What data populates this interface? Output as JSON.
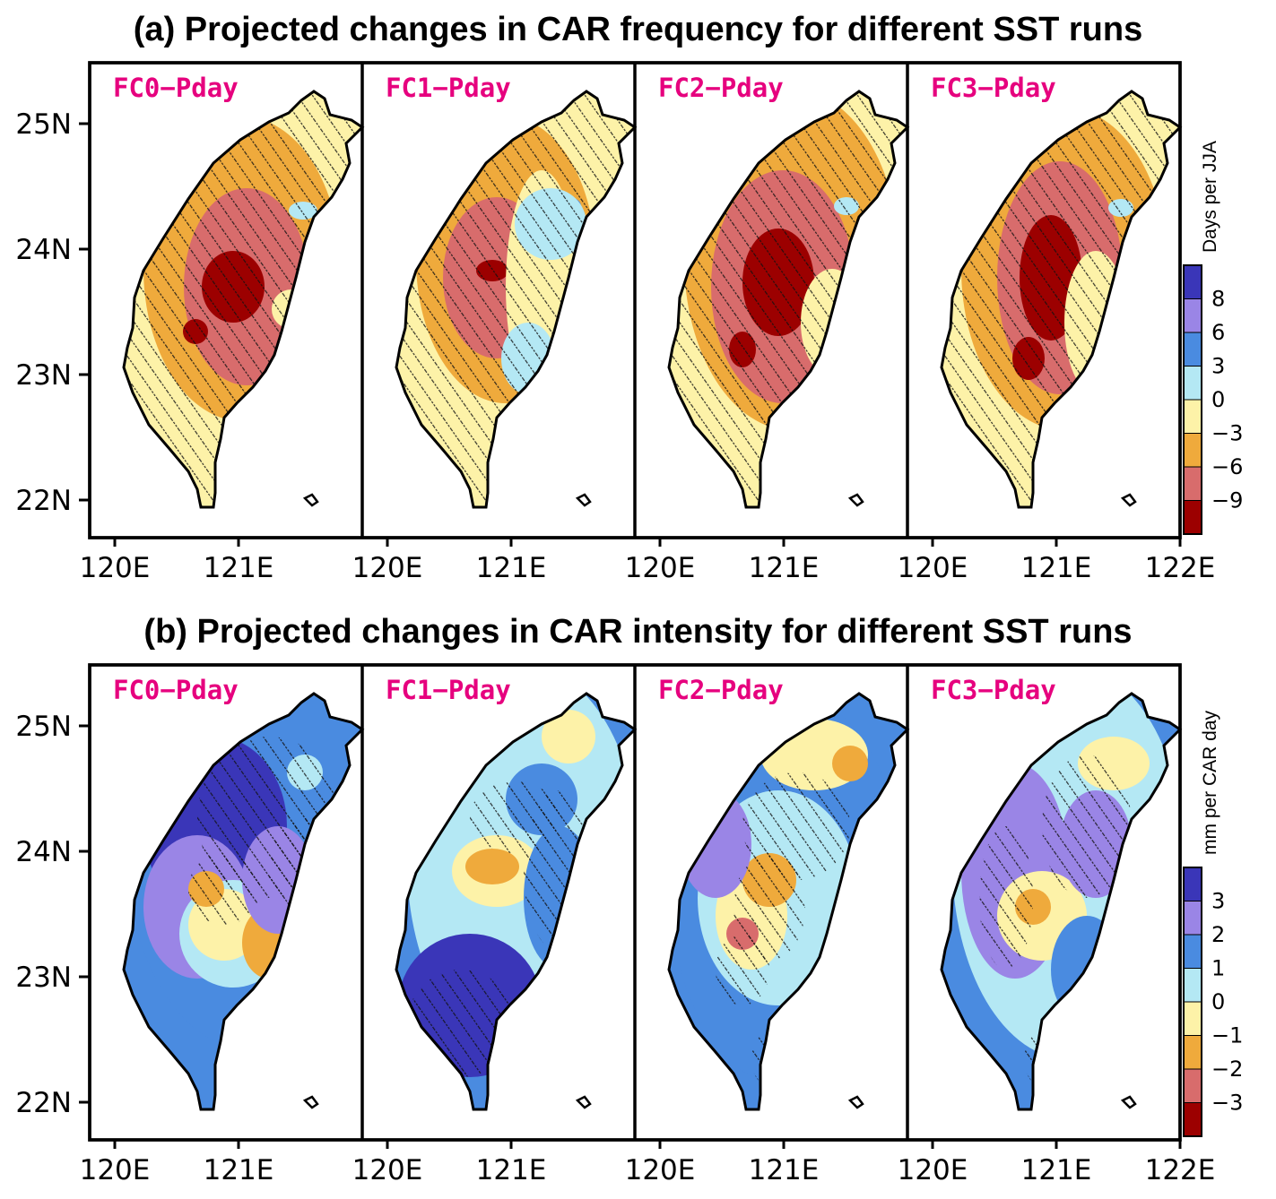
{
  "figure": {
    "title_a": "(a) Projected changes in CAR frequency for different SST runs",
    "title_b": "(b) Projected changes in CAR intensity for different SST runs",
    "panel_labels": [
      "FC0−Pday",
      "FC1−Pday",
      "FC2−Pday",
      "FC3−Pday"
    ],
    "lat_ticks": [
      "25N",
      "24N",
      "23N",
      "22N"
    ],
    "lon_ticks": [
      "120E",
      "121E",
      "120E",
      "121E",
      "120E",
      "121E",
      "120E",
      "121E",
      "122E"
    ],
    "colorbar_a": {
      "title": "Days per JJA",
      "tick_labels": [
        "8",
        "6",
        "3",
        "0",
        "−3",
        "−6",
        "−9"
      ],
      "colors": [
        "#3a36b8",
        "#9a85e6",
        "#4a8be0",
        "#b4e8f4",
        "#fdf2a8",
        "#efaa3c",
        "#d86c6c",
        "#9c0000"
      ]
    },
    "colorbar_b": {
      "title": "mm per CAR day",
      "tick_labels": [
        "3",
        "2",
        "1",
        "0",
        "−1",
        "−2",
        "−3"
      ],
      "colors": [
        "#3a36b8",
        "#9a85e6",
        "#4a8be0",
        "#b4e8f4",
        "#fdf2a8",
        "#efaa3c",
        "#d86c6c",
        "#9c0000"
      ]
    }
  }
}
